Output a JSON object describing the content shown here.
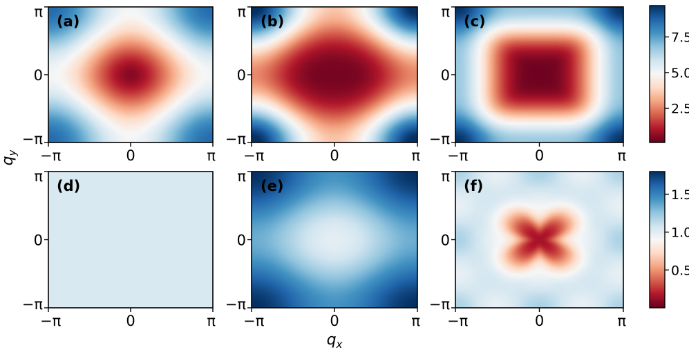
{
  "chart_data": {
    "type": "heatmap",
    "x_ticks": [
      "−π",
      "0",
      "π"
    ],
    "y_ticks": [
      "−π",
      "0",
      "π"
    ],
    "xlabel": "q",
    "xlabel_sub": "x",
    "ylabel": "q",
    "ylabel_sub": "y",
    "colormap": "RdBu",
    "panels": [
      {
        "label": "(a)",
        "row": 0,
        "col": 0,
        "pattern": "diamond",
        "min": 0.1,
        "max": 9.7
      },
      {
        "label": "(b)",
        "row": 0,
        "col": 1,
        "pattern": "broad-ellipse",
        "min": 0.1,
        "max": 9.7
      },
      {
        "label": "(c)",
        "row": 0,
        "col": 2,
        "pattern": "rounded-square",
        "min": 0.1,
        "max": 9.7
      },
      {
        "label": "(d)",
        "row": 1,
        "col": 0,
        "pattern": "uniform",
        "min": 0.0,
        "max": 1.8,
        "uniform_value": 1.05
      },
      {
        "label": "(e)",
        "row": 1,
        "col": 1,
        "pattern": "ellipse-blue",
        "min": 0.0,
        "max": 1.8
      },
      {
        "label": "(f)",
        "row": 1,
        "col": 2,
        "pattern": "clover",
        "min": 0.0,
        "max": 1.8
      }
    ],
    "colorbars": [
      {
        "row": 0,
        "min": 0.1,
        "max": 9.7,
        "ticks": [
          2.5,
          5.0,
          7.5
        ],
        "tick_labels": [
          "2.5",
          "5.0",
          "7.5"
        ]
      },
      {
        "row": 1,
        "min": 0.0,
        "max": 1.8,
        "ticks": [
          0.5,
          1.0,
          1.5
        ],
        "tick_labels": [
          "0.5",
          "1.0",
          "1.5"
        ]
      }
    ]
  }
}
